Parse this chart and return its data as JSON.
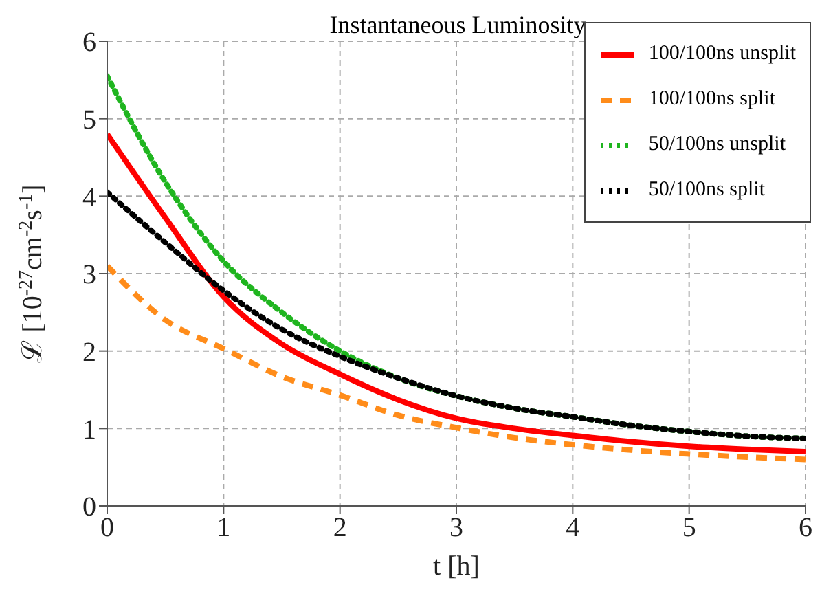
{
  "chart_data": {
    "type": "line",
    "title": "Instantaneous Luminosity",
    "xlabel": "t [h]",
    "ylabel": "ℒ [10$^{-27}$cm$^{-2}$s$^{-1}$]",
    "x": [
      0,
      0.5,
      1,
      1.5,
      2,
      2.5,
      3,
      3.5,
      4,
      4.5,
      5,
      5.5,
      6
    ],
    "series": [
      {
        "name": "100/100ns unsplit",
        "color": "#ff0000",
        "line_style": "solid",
        "values": [
          4.8,
          3.72,
          2.7,
          2.09,
          1.7,
          1.37,
          1.13,
          1.0,
          0.91,
          0.83,
          0.77,
          0.73,
          0.7
        ]
      },
      {
        "name": "100/100ns split",
        "color": "#ff8c1a",
        "line_style": "dashed",
        "values": [
          3.1,
          2.4,
          2.03,
          1.67,
          1.43,
          1.17,
          1.01,
          0.88,
          0.79,
          0.72,
          0.67,
          0.63,
          0.6
        ]
      },
      {
        "name": "50/100ns unsplit",
        "color": "#1fb51f",
        "line_style": "dotted",
        "values": [
          5.55,
          4.18,
          3.16,
          2.5,
          2.0,
          1.65,
          1.42,
          1.26,
          1.15,
          1.04,
          0.96,
          0.9,
          0.87
        ]
      },
      {
        "name": "50/100ns split",
        "color": "#000000",
        "line_style": "dotted",
        "values": [
          4.05,
          3.4,
          2.78,
          2.28,
          1.93,
          1.65,
          1.42,
          1.26,
          1.15,
          1.04,
          0.96,
          0.9,
          0.87
        ]
      }
    ],
    "xlim": [
      0,
      6
    ],
    "ylim": [
      0,
      6
    ],
    "xticks": [
      0,
      1,
      2,
      3,
      4,
      5,
      6
    ],
    "yticks": [
      0,
      1,
      2,
      3,
      4,
      5,
      6
    ],
    "grid": true,
    "legend": "top right"
  }
}
